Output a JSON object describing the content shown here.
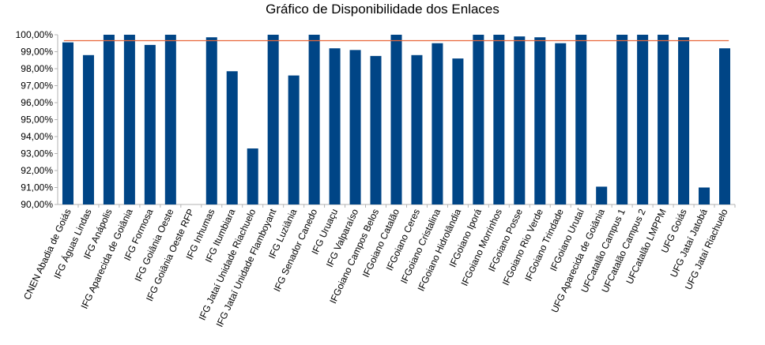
{
  "chart_data": {
    "type": "bar",
    "title": "Gráfico de Disponibilidade dos Enlaces",
    "xlabel": "",
    "ylabel": "",
    "ylim": [
      90,
      100
    ],
    "y_ticks": [
      "90,00%",
      "91,00%",
      "92,00%",
      "93,00%",
      "94,00%",
      "95,00%",
      "96,00%",
      "97,00%",
      "98,00%",
      "99,00%",
      "100,00%"
    ],
    "grid": false,
    "legend": "none",
    "categories": [
      "CNEN Abadia de Goiás",
      "IFG Águas Lindas",
      "IFG Anápolis",
      "IFG Aparecida de Goiânia",
      "IFG Formosa",
      "IFG Goiânia Oeste",
      "IFG Goiânia Oeste RFP",
      "IFG Inhumas",
      "IFG Itumbiara",
      "IFG Jataí Unidade Riachuelo",
      "IFG Jataí Unidade Flamboyant",
      "IFG Luziânia",
      "IFG Senador Canedo",
      "IFG Uruaçu",
      "IFG Valparaíso",
      "IFGoiano Campos Belos",
      "IFGoiano Catalão",
      "IFGoiano Ceres",
      "IFGoiano Cristalina",
      "IFGoiano Hidrolândia",
      "IFGoiano Iporá",
      "IFGoiano Morrinhos",
      "IFGoiano Posse",
      "IFGoiano Rio Verde",
      "IFGoiano Trindade",
      "IFGoiano Urutaí",
      "UFG Aparecida de Goiânia",
      "UFCatalão Campus 1",
      "UFCatalão Campus 2",
      "UFCatalão LMPPM",
      "UFG Goiás",
      "UFG Jataí Jatobá",
      "UFG Jataí Riachuelo"
    ],
    "series": [
      {
        "values": [
          99.55,
          98.8,
          100.0,
          100.0,
          99.4,
          100.0,
          90.0,
          99.85,
          97.85,
          93.3,
          100.0,
          97.6,
          100.0,
          99.2,
          99.1,
          98.75,
          100.0,
          98.8,
          99.5,
          98.6,
          100.0,
          100.0,
          99.9,
          99.85,
          99.5,
          100.0,
          91.05,
          100.0,
          100.0,
          100.0,
          99.85,
          91.0,
          99.2
        ]
      }
    ],
    "reference_line": {
      "value": 99.65
    },
    "colors": {
      "bar": "#004586",
      "reference_line": "#e8673a",
      "axis": "#b3b3b3"
    }
  }
}
